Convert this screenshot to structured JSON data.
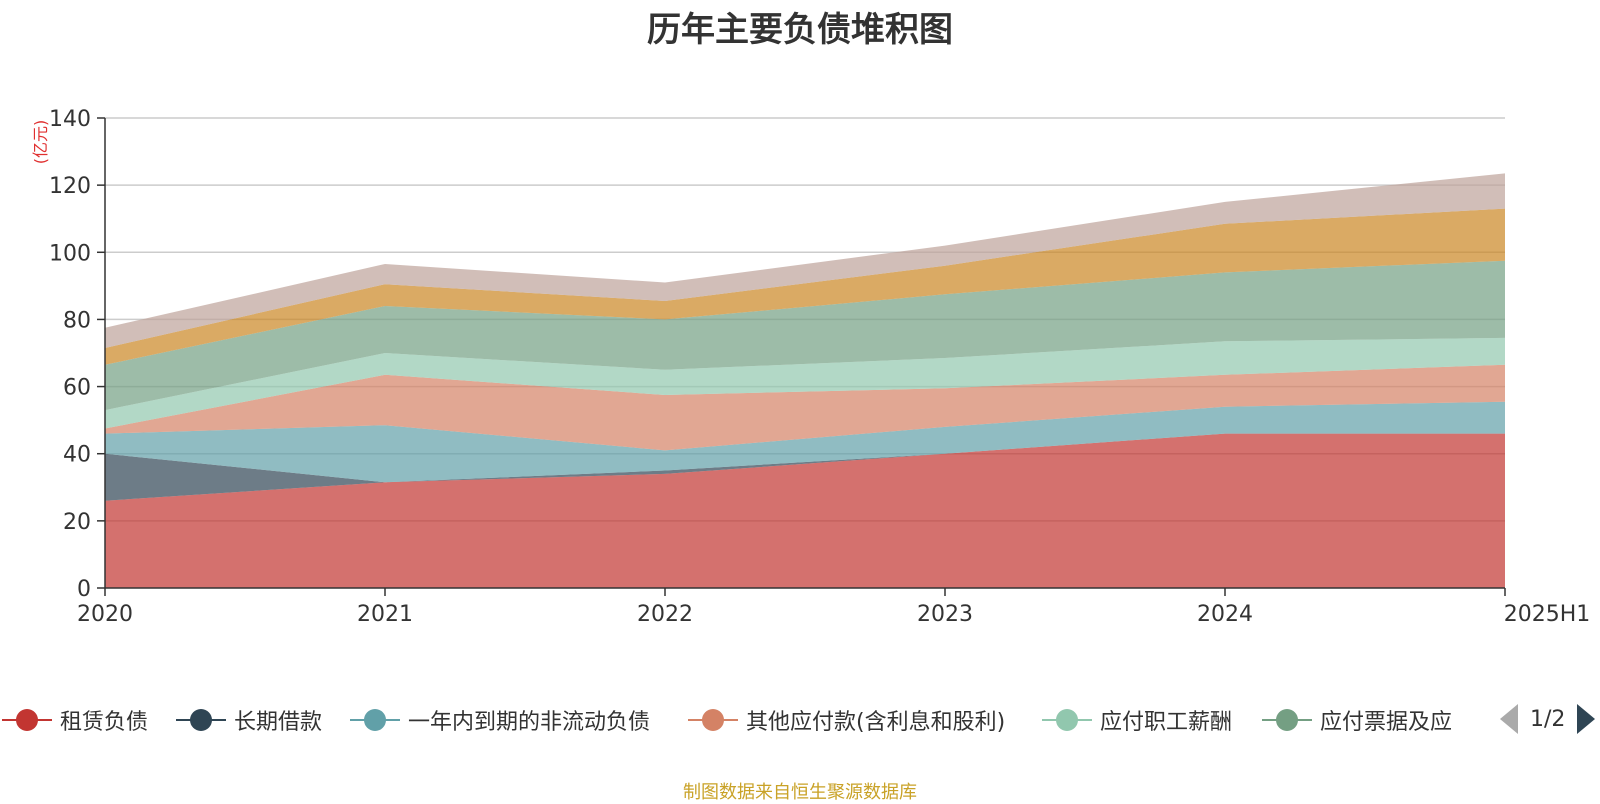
{
  "title": "历年主要负债堆积图",
  "unit_label": "(亿元)",
  "source_note": "制图数据来自恒生聚源数据库",
  "pager": {
    "text": "1/2"
  },
  "chart_data": {
    "type": "area",
    "stacked": true,
    "title": "历年主要负债堆积图",
    "ylabel": "(亿元)",
    "xlabel": "",
    "categories": [
      "2020",
      "2021",
      "2022",
      "2023",
      "2024",
      "2025H1"
    ],
    "ylim": [
      0,
      140
    ],
    "yticks": [
      0,
      20,
      40,
      60,
      80,
      100,
      120,
      140
    ],
    "grid": true,
    "legend_position": "bottom",
    "series": [
      {
        "name": "租赁负债",
        "color": "#c23531",
        "values": [
          26,
          31.5,
          34,
          40,
          46,
          46
        ]
      },
      {
        "name": "长期借款",
        "color": "#2f4554",
        "values": [
          14,
          0,
          1,
          0,
          0,
          0
        ]
      },
      {
        "name": "一年内到期的非流动负债",
        "color": "#61a0a8",
        "values": [
          6,
          17,
          6,
          8,
          8,
          9.5
        ]
      },
      {
        "name": "其他应付款(含利息和股利)",
        "color": "#d48265",
        "values": [
          1.5,
          15,
          16.5,
          11.5,
          9.5,
          11
        ]
      },
      {
        "name": "应付职工薪酬",
        "color": "#91c7ae",
        "values": [
          5.5,
          6.5,
          7.5,
          9,
          10,
          8
        ]
      },
      {
        "name": "应付票据及应付账款",
        "color": "#749f83",
        "values": [
          13.5,
          14,
          15,
          19,
          20.5,
          23
        ]
      },
      {
        "name": "",
        "color": "#ca8622",
        "values": [
          5,
          6.5,
          5.5,
          8.5,
          14.5,
          15.5
        ]
      },
      {
        "name": "",
        "color": "#bda29a",
        "values": [
          6,
          6,
          5.5,
          6,
          6.5,
          10.5
        ]
      }
    ]
  },
  "legend": [
    {
      "label": "租赁负债",
      "color": "#c23531"
    },
    {
      "label": "长期借款",
      "color": "#2f4554"
    },
    {
      "label": "一年内到期的非流动负债",
      "color": "#61a0a8"
    },
    {
      "label": "其他应付款(含利息和股利)",
      "color": "#d48265"
    },
    {
      "label": "应付职工薪酬",
      "color": "#91c7ae"
    },
    {
      "label": "应付票据及应",
      "color": "#749f83"
    }
  ]
}
